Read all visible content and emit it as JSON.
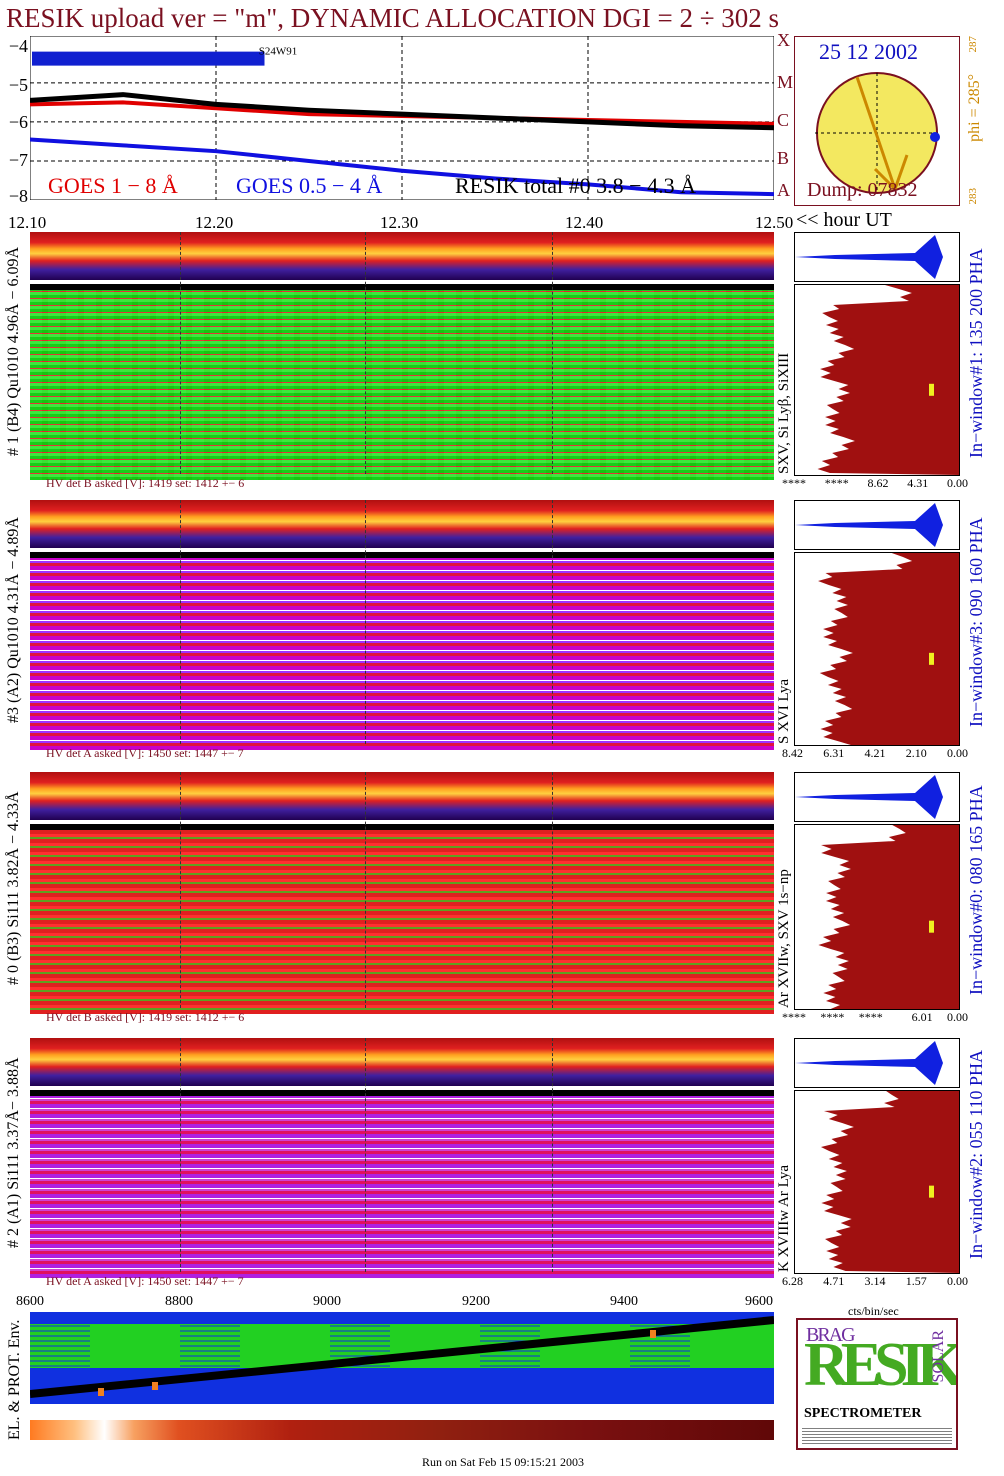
{
  "title": "RESIK upload ver = \"m\", DYNAMIC ALLOCATION  DGI =   2 ÷ 302 s",
  "lightcurve": {
    "y_ticks": [
      "−4",
      "−5",
      "−6",
      "−7",
      "−8"
    ],
    "goes_class_letters": [
      "X",
      "M",
      "C",
      "B",
      "A"
    ],
    "flag_label": "S24W91",
    "legend": {
      "goes_long": "GOES 1 − 8 Å",
      "goes_short": "GOES 0.5 − 4 Å",
      "resik": "RESIK total #0  3.8 − 4.3 Å"
    },
    "colors": {
      "goes_long": "#e00000",
      "goes_short": "#1010e0",
      "resik": "#000000",
      "flag": "#1020d0"
    }
  },
  "time_axis": {
    "ticks": [
      "12.10",
      "12.20",
      "12.30",
      "12.40",
      "12.50"
    ],
    "suffix": "<< hour UT"
  },
  "sun": {
    "date": "25 12 2002",
    "dump": "Dump: 07832",
    "phi": "phi = 285°",
    "phi_top": "287",
    "phi_bottom": "283",
    "disk_color": "#f3e860",
    "limb_color": "#8b1a1a"
  },
  "detectors": [
    {
      "name": "# 1 (B4) Qu1010 4.96Å − 6.09Å",
      "lines": "SXV, Si Lyβ, SiXIII",
      "window": "In−window#1:  135 200 PHA",
      "hv": "HV det B asked [V]:   1419  set:   1412  +−     6",
      "scale": [
        "****",
        "****",
        "8.62",
        "4.31",
        "0.00"
      ]
    },
    {
      "name": "#3 (A2) Qu1010  4.31Å − 4.89Å",
      "lines": "S XVI Lya",
      "window": "In−window#3:  090 160 PHA",
      "hv": "HV det A asked [V]:   1450  set:   1447  +−     7",
      "scale": [
        "8.42",
        "6.31",
        "4.21",
        "2.10",
        "0.00"
      ]
    },
    {
      "name": "# 0 (B3) Si111  3.82Å − 4.33Å",
      "lines": "Ar XVIIw, SXV 1s−np",
      "window": "In−window#0:  080 165 PHA",
      "hv": "HV det B asked [V]:   1419  set:   1412  +−     6",
      "scale": [
        "****",
        "****",
        "****",
        "",
        "6.01",
        "0.00"
      ]
    },
    {
      "name": "# 2 (A1) Si111  3.37Å−  3.88Å",
      "lines": "K XVIIIw  Ar Lya",
      "window": "In−window#2:  055 110 PHA",
      "hv": "HV det A asked [V]:   1450  set:   1447  +−     7",
      "scale": [
        "6.28",
        "4.71",
        "3.14",
        "1.57",
        "0.00"
      ]
    }
  ],
  "unit_label": "cts/bin/sec",
  "env": {
    "label": "EL. & PROT. Env.",
    "x_ticks": [
      "8600",
      "8800",
      "9000",
      "9200",
      "9400",
      "9600"
    ]
  },
  "logo": {
    "letters": "RESIK",
    "bragg": "BRAG",
    "solar": "SOLAR",
    "spectrometer": "SPECTROMETER"
  },
  "footer": "Run on Sat Feb 15 09:15:21 2003",
  "chart_data": {
    "type": "line",
    "title": "RESIK upload ver = \"m\", DYNAMIC ALLOCATION  DGI =   2 ÷ 302 s",
    "xlabel": "<< hour UT",
    "ylabel": "",
    "x": [
      12.1,
      12.15,
      12.2,
      12.25,
      12.3,
      12.35,
      12.4,
      12.45,
      12.5
    ],
    "ylim": [
      -8,
      -3.8
    ],
    "xlim": [
      12.1,
      12.5
    ],
    "series": [
      {
        "name": "GOES 1 − 8 Å",
        "color": "#e00000",
        "values": [
          -5.55,
          -5.5,
          -5.65,
          -5.8,
          -5.85,
          -5.9,
          -5.95,
          -6.0,
          -6.05
        ]
      },
      {
        "name": "RESIK total #0  3.8 − 4.3 Å",
        "color": "#000000",
        "values": [
          -5.45,
          -5.3,
          -5.55,
          -5.7,
          -5.8,
          -5.9,
          -6.0,
          -6.1,
          -6.15
        ]
      },
      {
        "name": "GOES 0.5 − 4 Å",
        "color": "#1010e0",
        "values": [
          -6.45,
          -6.6,
          -6.75,
          -7.0,
          -7.25,
          -7.45,
          -7.6,
          -7.8,
          -7.85
        ]
      }
    ],
    "grid": true
  }
}
